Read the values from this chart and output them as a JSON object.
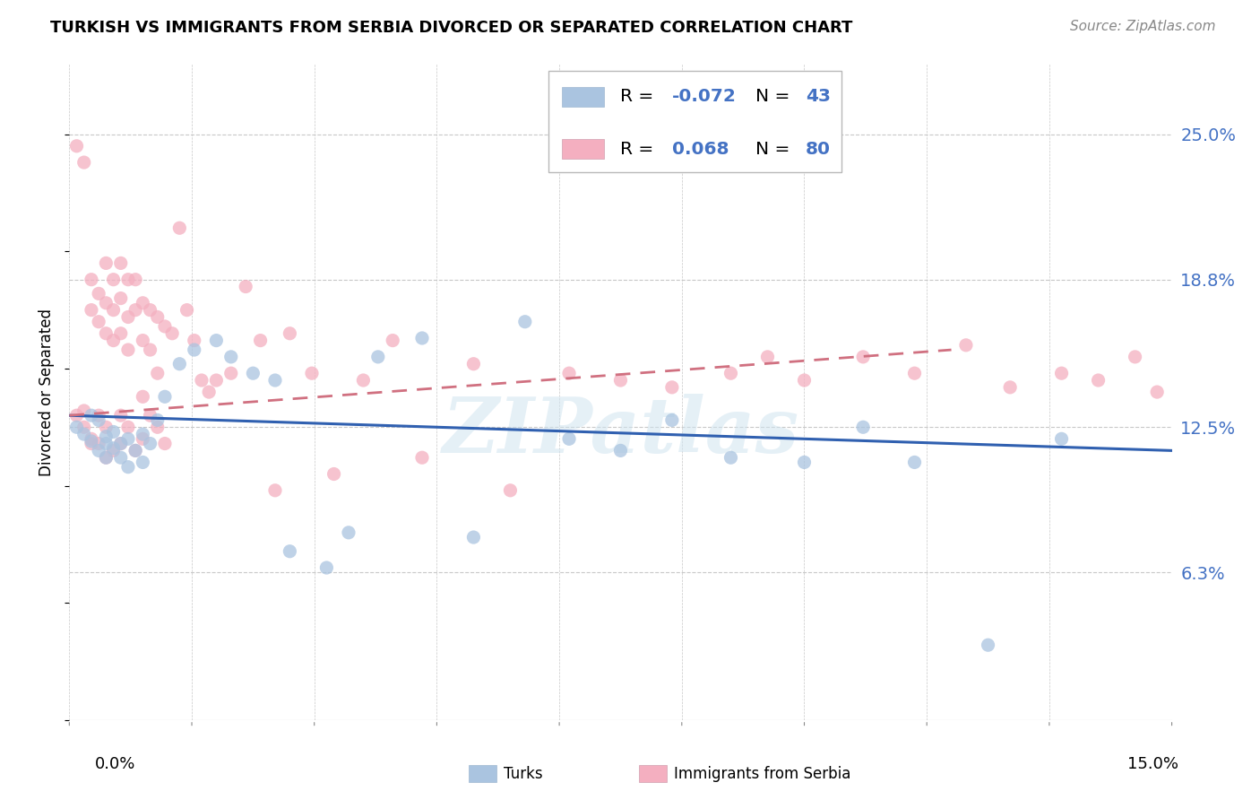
{
  "title": "TURKISH VS IMMIGRANTS FROM SERBIA DIVORCED OR SEPARATED CORRELATION CHART",
  "source": "Source: ZipAtlas.com",
  "ylabel": "Divorced or Separated",
  "ytick_labels": [
    "25.0%",
    "18.8%",
    "12.5%",
    "6.3%"
  ],
  "ytick_values": [
    0.25,
    0.188,
    0.125,
    0.063
  ],
  "xlim": [
    0.0,
    0.15
  ],
  "ylim": [
    0.0,
    0.28
  ],
  "turks_R": "-0.072",
  "turks_N": "43",
  "serbia_R": "0.068",
  "serbia_N": "80",
  "turks_color": "#aac4e0",
  "serbia_color": "#f4afc0",
  "turks_line_color": "#3060b0",
  "serbia_line_color": "#d07080",
  "watermark": "ZIPatlas",
  "turks_scatter_x": [
    0.001,
    0.002,
    0.003,
    0.003,
    0.004,
    0.004,
    0.005,
    0.005,
    0.005,
    0.006,
    0.006,
    0.007,
    0.007,
    0.008,
    0.008,
    0.009,
    0.01,
    0.01,
    0.011,
    0.012,
    0.013,
    0.015,
    0.017,
    0.02,
    0.022,
    0.025,
    0.028,
    0.03,
    0.035,
    0.038,
    0.042,
    0.048,
    0.055,
    0.062,
    0.068,
    0.075,
    0.082,
    0.09,
    0.1,
    0.108,
    0.115,
    0.125,
    0.135
  ],
  "turks_scatter_y": [
    0.125,
    0.122,
    0.119,
    0.13,
    0.115,
    0.128,
    0.118,
    0.112,
    0.121,
    0.116,
    0.123,
    0.118,
    0.112,
    0.12,
    0.108,
    0.115,
    0.122,
    0.11,
    0.118,
    0.128,
    0.138,
    0.152,
    0.158,
    0.162,
    0.155,
    0.148,
    0.145,
    0.072,
    0.065,
    0.08,
    0.155,
    0.163,
    0.078,
    0.17,
    0.12,
    0.115,
    0.128,
    0.112,
    0.11,
    0.125,
    0.11,
    0.032,
    0.12
  ],
  "serbia_scatter_x": [
    0.001,
    0.001,
    0.002,
    0.002,
    0.002,
    0.003,
    0.003,
    0.003,
    0.003,
    0.004,
    0.004,
    0.004,
    0.004,
    0.005,
    0.005,
    0.005,
    0.005,
    0.005,
    0.006,
    0.006,
    0.006,
    0.006,
    0.007,
    0.007,
    0.007,
    0.007,
    0.007,
    0.008,
    0.008,
    0.008,
    0.008,
    0.009,
    0.009,
    0.009,
    0.01,
    0.01,
    0.01,
    0.01,
    0.011,
    0.011,
    0.011,
    0.012,
    0.012,
    0.012,
    0.013,
    0.013,
    0.014,
    0.015,
    0.016,
    0.017,
    0.018,
    0.019,
    0.02,
    0.022,
    0.024,
    0.026,
    0.028,
    0.03,
    0.033,
    0.036,
    0.04,
    0.044,
    0.048,
    0.055,
    0.06,
    0.068,
    0.075,
    0.082,
    0.09,
    0.095,
    0.1,
    0.108,
    0.115,
    0.122,
    0.128,
    0.135,
    0.14,
    0.145,
    0.148,
    0.152
  ],
  "serbia_scatter_y": [
    0.13,
    0.245,
    0.125,
    0.132,
    0.238,
    0.188,
    0.175,
    0.12,
    0.118,
    0.182,
    0.17,
    0.13,
    0.118,
    0.195,
    0.178,
    0.165,
    0.125,
    0.112,
    0.188,
    0.175,
    0.162,
    0.115,
    0.195,
    0.18,
    0.165,
    0.13,
    0.118,
    0.188,
    0.172,
    0.158,
    0.125,
    0.188,
    0.175,
    0.115,
    0.178,
    0.162,
    0.138,
    0.12,
    0.175,
    0.158,
    0.13,
    0.172,
    0.148,
    0.125,
    0.168,
    0.118,
    0.165,
    0.21,
    0.175,
    0.162,
    0.145,
    0.14,
    0.145,
    0.148,
    0.185,
    0.162,
    0.098,
    0.165,
    0.148,
    0.105,
    0.145,
    0.162,
    0.112,
    0.152,
    0.098,
    0.148,
    0.145,
    0.142,
    0.148,
    0.155,
    0.145,
    0.155,
    0.148,
    0.16,
    0.142,
    0.148,
    0.145,
    0.155,
    0.14,
    0.158
  ],
  "turks_line_x0": 0.0,
  "turks_line_x1": 0.15,
  "turks_line_y0": 0.13,
  "turks_line_y1": 0.115,
  "serbia_line_x0": 0.0,
  "serbia_line_x1": 0.12,
  "serbia_line_y0": 0.13,
  "serbia_line_y1": 0.158
}
